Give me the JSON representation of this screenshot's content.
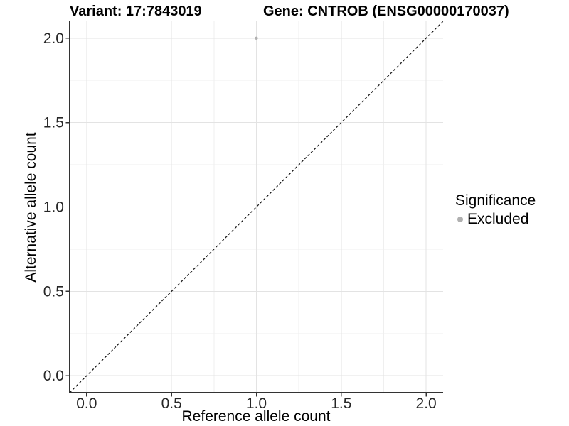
{
  "header": {
    "variant_title": "Variant: 17:7843019",
    "gene_title": "Gene: CNTROB (ENSG00000170037)"
  },
  "chart_data": {
    "type": "scatter",
    "xlabel": "Reference allele count",
    "ylabel": "Alternative allele count",
    "xlim": [
      -0.1,
      2.1
    ],
    "ylim": [
      -0.1,
      2.1
    ],
    "x_ticks": [
      0.0,
      0.5,
      1.0,
      1.5,
      2.0
    ],
    "x_tick_labels": [
      "0.0",
      "0.5",
      "1.0",
      "1.5",
      "2.0"
    ],
    "y_ticks": [
      0.0,
      0.5,
      1.0,
      1.5,
      2.0
    ],
    "y_tick_labels": [
      "0.0",
      "0.5",
      "1.0",
      "1.5",
      "2.0"
    ],
    "x_minor_ticks": [
      0.25,
      0.75,
      1.25,
      1.75
    ],
    "y_minor_ticks": [
      0.25,
      0.75,
      1.25,
      1.75
    ],
    "grid": true,
    "series": [
      {
        "name": "Excluded",
        "color": "#b0b0b0",
        "points": [
          {
            "x": 1.0,
            "y": 2.0
          }
        ]
      }
    ],
    "reference_line": {
      "type": "identity",
      "slope": 1,
      "intercept": 0,
      "style": "dashed",
      "color": "#1a1a1a"
    },
    "legend": {
      "title": "Significance",
      "position": "right",
      "entries": [
        {
          "label": "Excluded",
          "marker": "circle",
          "color": "#b0b0b0"
        }
      ]
    },
    "colors": {
      "background": "#ffffff",
      "grid_major": "#e3e3e3",
      "grid_minor": "#efefef",
      "axis": "#333333",
      "tick_label": "#262626",
      "text": "#000000"
    }
  }
}
